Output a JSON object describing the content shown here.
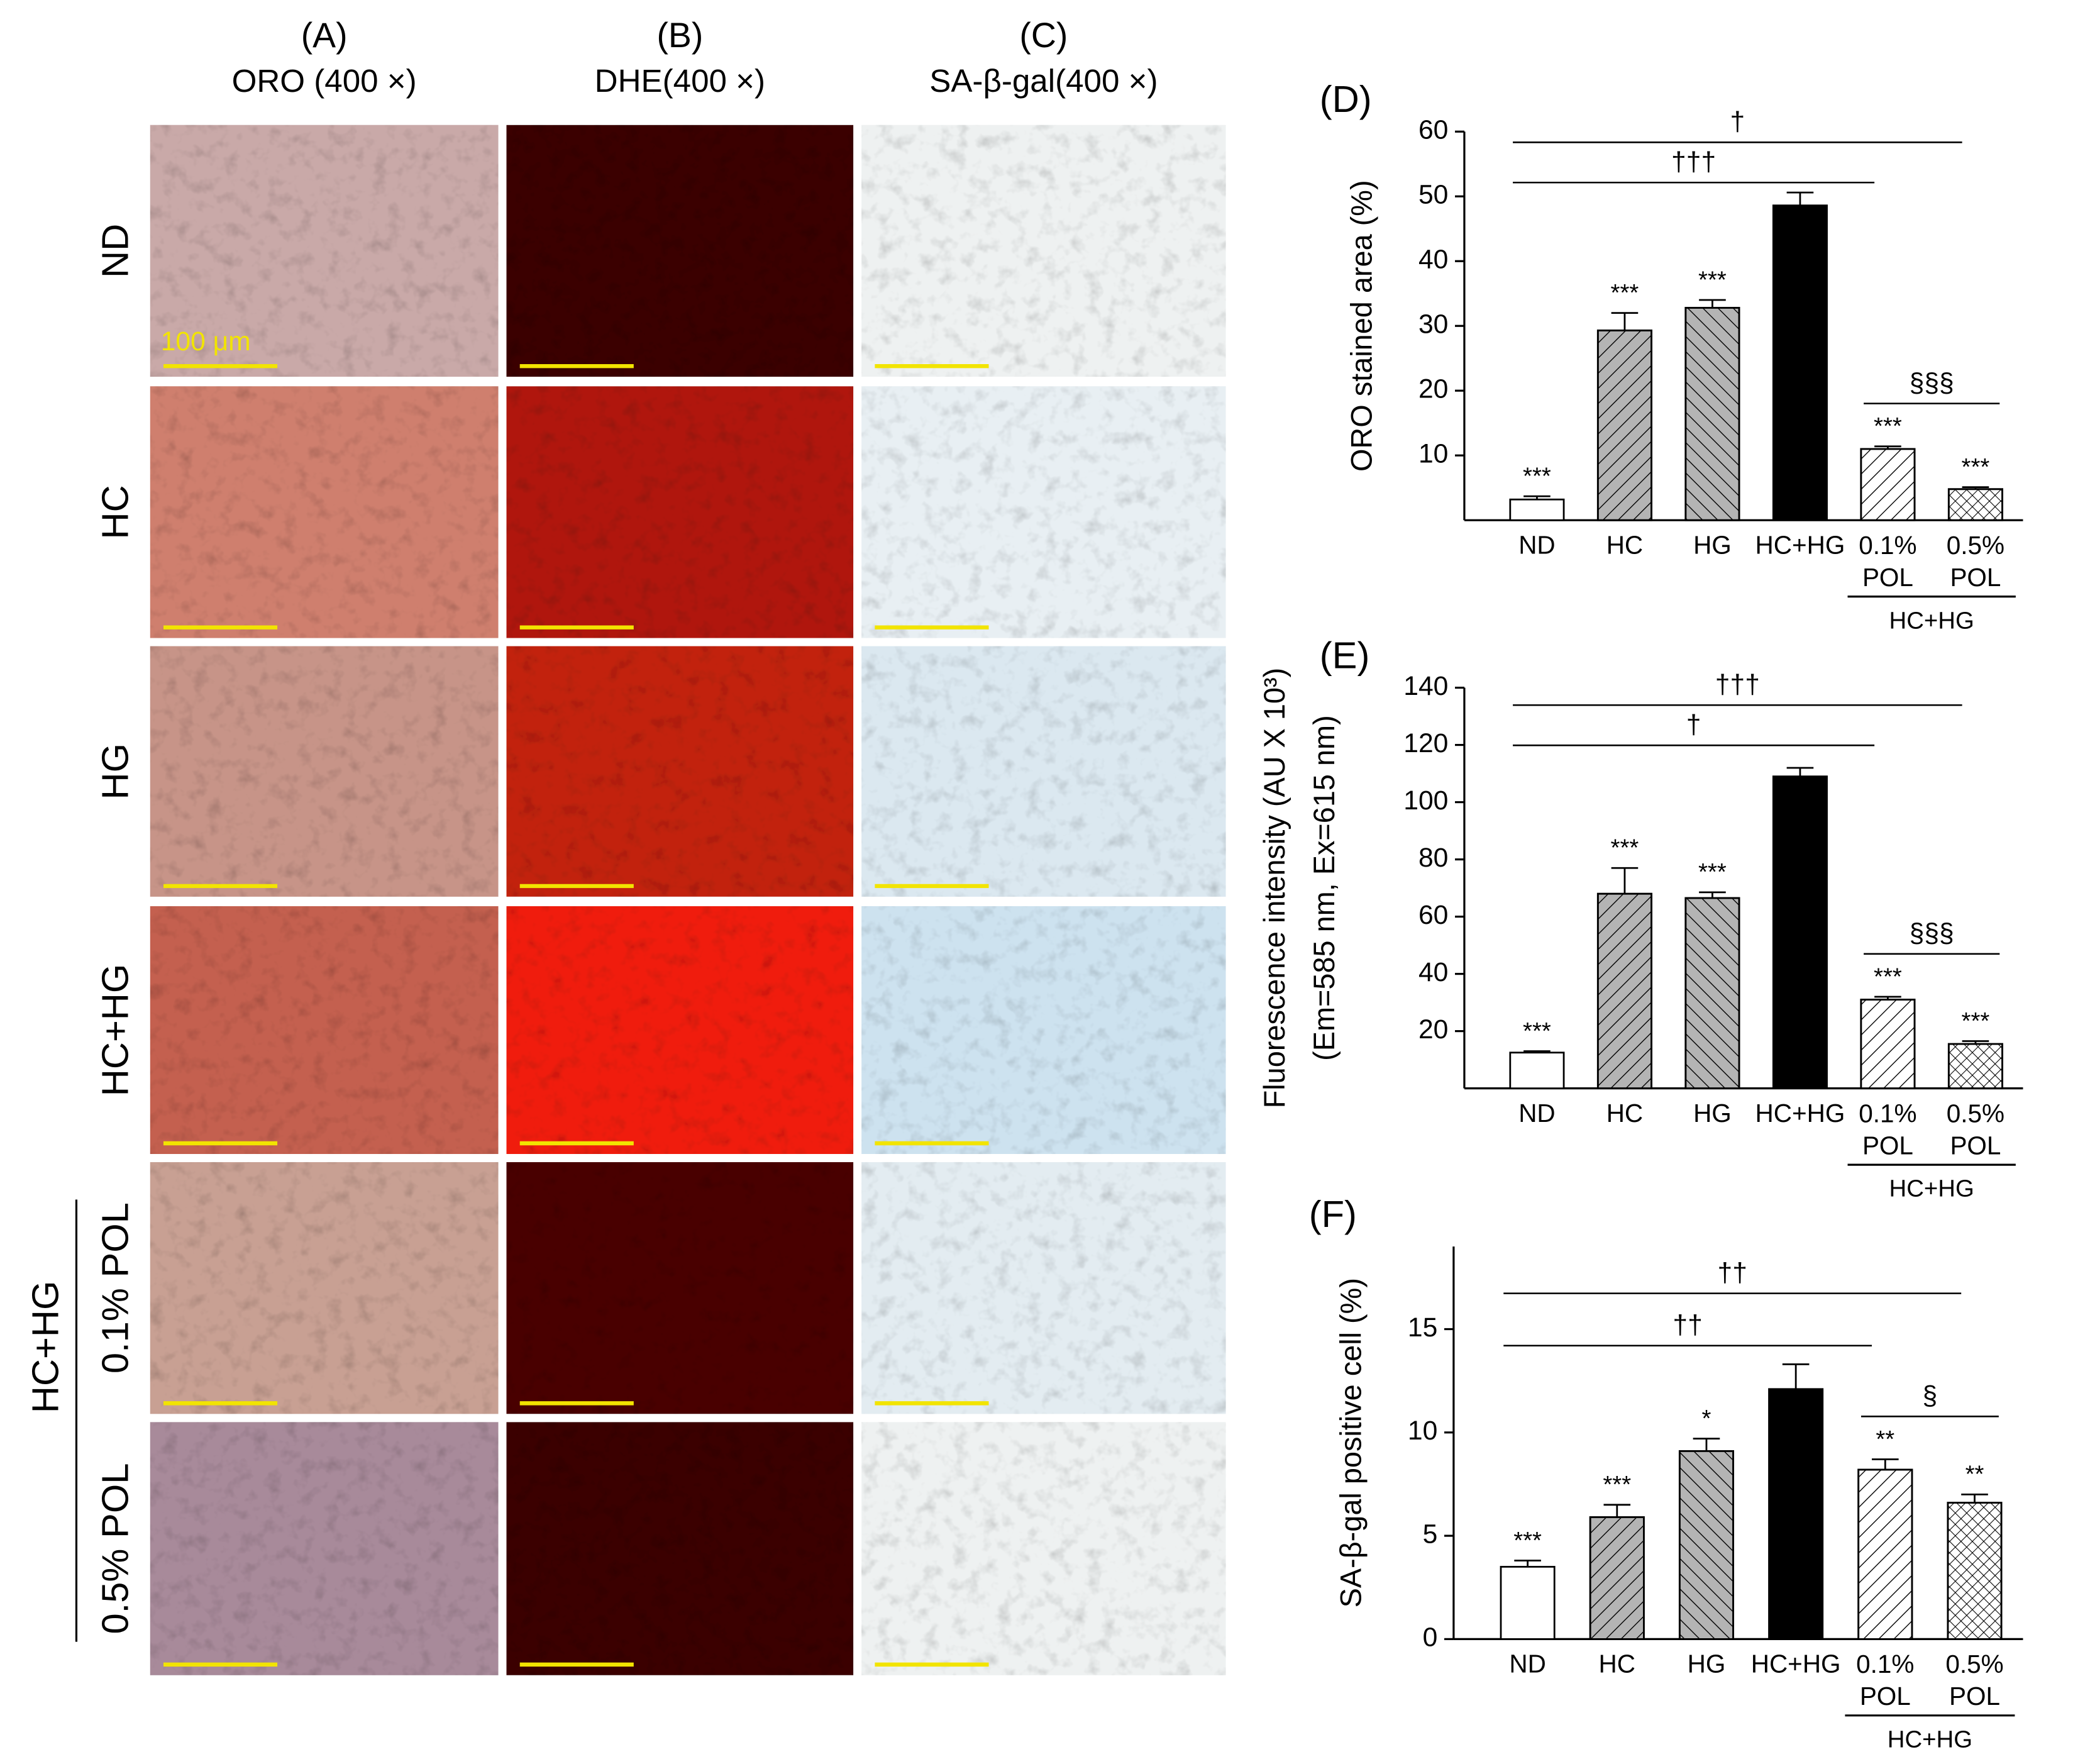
{
  "panels": {
    "columns": [
      {
        "letter": "(A)",
        "title": "ORO (400 ×)"
      },
      {
        "letter": "(B)",
        "title": "DHE(400 ×)"
      },
      {
        "letter": "(C)",
        "title": "SA-β-gal(400 ×)"
      }
    ],
    "rows": [
      "ND",
      "HC",
      "HG",
      "HC+HG",
      "0.1% POL",
      "0.5% POL"
    ],
    "row_group": "HC+HG",
    "scale_bar": "100 μm"
  },
  "chart_data": [
    {
      "type": "bar",
      "title": "(D)",
      "ylabel": [
        "ORO stained area (%)"
      ],
      "categories": [
        "ND",
        "HC",
        "HG",
        "HC+HG",
        "0.1% POL",
        "0.5% POL"
      ],
      "values": [
        3.2,
        29.3,
        32.8,
        48.6,
        11,
        4.8
      ],
      "errors": [
        0.5,
        2.7,
        1.2,
        2.0,
        0.4,
        0.3
      ],
      "significance": [
        "***",
        "***",
        "***",
        null,
        "***",
        "***"
      ],
      "colors": [
        "#ffffff",
        "#b4b4b4",
        "#b4b4b4",
        "#000000",
        "#ffffff",
        "#ffffff"
      ],
      "patterns": [
        "none",
        "diagonal",
        "back-diagonal",
        "none",
        "diagonal",
        "crosshatch"
      ],
      "ylim": [
        0,
        60
      ],
      "yticks": [
        10,
        20,
        30,
        40,
        50,
        60
      ],
      "brackets": [
        {
          "label": "†",
          "span": [
            "ND",
            "0.5% POL"
          ]
        },
        {
          "label": "†††",
          "span": [
            "ND",
            "0.1% POL"
          ]
        },
        {
          "label": "§§§",
          "span": [
            "0.1% POL",
            "0.5% POL"
          ]
        }
      ],
      "group": {
        "label": "HC+HG",
        "span": [
          "0.1% POL",
          "0.5% POL"
        ]
      }
    },
    {
      "type": "bar",
      "title": "(E)",
      "ylabel": [
        "Fluorescence intensity (AU X 10³)",
        "(Em=585 nm, Ex=615 nm)"
      ],
      "categories": [
        "ND",
        "HC",
        "HG",
        "HC+HG",
        "0.1% POL",
        "0.5% POL"
      ],
      "values": [
        12.5,
        68,
        66.5,
        109,
        31,
        15.5
      ],
      "errors": [
        0.5,
        9,
        2,
        3,
        1,
        1
      ],
      "significance": [
        "***",
        "***",
        "***",
        null,
        "***",
        "***"
      ],
      "colors": [
        "#ffffff",
        "#b4b4b4",
        "#b4b4b4",
        "#000000",
        "#ffffff",
        "#ffffff"
      ],
      "patterns": [
        "none",
        "diagonal",
        "back-diagonal",
        "none",
        "diagonal",
        "crosshatch"
      ],
      "ylim": [
        0,
        140
      ],
      "yticks": [
        20,
        40,
        60,
        80,
        100,
        120,
        140
      ],
      "brackets": [
        {
          "label": "†††",
          "span": [
            "ND",
            "0.5% POL"
          ]
        },
        {
          "label": "†",
          "span": [
            "ND",
            "0.1% POL"
          ]
        },
        {
          "label": "§§§",
          "span": [
            "0.1% POL",
            "0.5% POL"
          ]
        }
      ],
      "group": {
        "label": "HC+HG",
        "span": [
          "0.1% POL",
          "0.5% POL"
        ]
      }
    },
    {
      "type": "bar",
      "title": "(F)",
      "ylabel": [
        "SA-β-gal positive cell (%)"
      ],
      "categories": [
        "ND",
        "HC",
        "HG",
        "HC+HG",
        "0.1% POL",
        "0.5% POL"
      ],
      "values": [
        3.5,
        5.9,
        9.1,
        12.1,
        8.2,
        6.6
      ],
      "errors": [
        0.3,
        0.6,
        0.6,
        1.2,
        0.5,
        0.4
      ],
      "significance": [
        "***",
        "***",
        "*",
        null,
        "**",
        "**"
      ],
      "colors": [
        "#ffffff",
        "#b4b4b4",
        "#b4b4b4",
        "#000000",
        "#ffffff",
        "#ffffff"
      ],
      "patterns": [
        "none",
        "diagonal",
        "back-diagonal",
        "none",
        "diagonal",
        "crosshatch"
      ],
      "ylim": [
        0,
        19
      ],
      "yticks": [
        0,
        5,
        10,
        15
      ],
      "brackets": [
        {
          "label": "††",
          "span": [
            "ND",
            "0.5% POL"
          ]
        },
        {
          "label": "††",
          "span": [
            "ND",
            "0.1% POL"
          ]
        },
        {
          "label": "§",
          "span": [
            "0.1% POL",
            "0.5% POL"
          ]
        }
      ],
      "group": {
        "label": "HC+HG",
        "span": [
          "0.1% POL",
          "0.5% POL"
        ]
      }
    }
  ]
}
